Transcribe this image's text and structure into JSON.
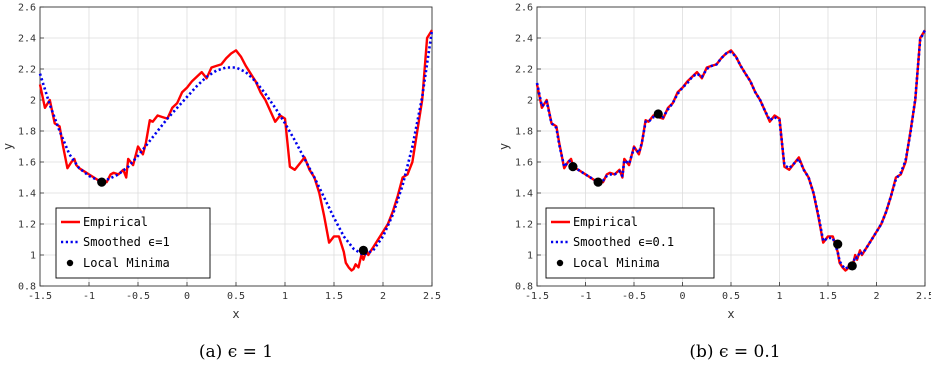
{
  "colors": {
    "empirical": "#ff0000",
    "smoothed": "#0000ee",
    "minima": "#000000",
    "grid": "#dddddd",
    "axis": "#333333"
  },
  "chart_data": [
    {
      "type": "line",
      "caption": "(a) ϵ = 1",
      "xlabel": "x",
      "ylabel": "y",
      "xlim": [
        -1.5,
        2.5
      ],
      "ylim": [
        0.8,
        2.6
      ],
      "xticks": [
        -1.5,
        -1,
        -0.5,
        0,
        0.5,
        1,
        1.5,
        2,
        2.5
      ],
      "xtick_labels": [
        "-1.5",
        "-1",
        "-0.5",
        "0",
        "0.5",
        "1",
        "1.5",
        "2",
        "2.5"
      ],
      "yticks": [
        0.8,
        1,
        1.2,
        1.4,
        1.6,
        1.8,
        2,
        2.2,
        2.4,
        2.6
      ],
      "ytick_labels": [
        "0.8",
        "1",
        "1.2",
        "1.4",
        "1.6",
        "1.8",
        "2",
        "2.2",
        "2.4",
        "2.6"
      ],
      "grid": true,
      "legend_position": "bottom-left",
      "series": [
        {
          "name": "Empirical",
          "style": "solid",
          "x": [
            -1.5,
            -1.45,
            -1.4,
            -1.35,
            -1.3,
            -1.27,
            -1.22,
            -1.18,
            -1.15,
            -1.13,
            -1.1,
            -1.05,
            -1.0,
            -0.95,
            -0.9,
            -0.85,
            -0.82,
            -0.78,
            -0.75,
            -0.7,
            -0.65,
            -0.62,
            -0.6,
            -0.55,
            -0.5,
            -0.45,
            -0.42,
            -0.38,
            -0.35,
            -0.3,
            -0.25,
            -0.2,
            -0.15,
            -0.1,
            -0.05,
            0.0,
            0.05,
            0.1,
            0.15,
            0.2,
            0.25,
            0.3,
            0.35,
            0.4,
            0.45,
            0.5,
            0.55,
            0.6,
            0.65,
            0.7,
            0.75,
            0.8,
            0.85,
            0.9,
            0.95,
            1.0,
            1.05,
            1.1,
            1.15,
            1.2,
            1.25,
            1.3,
            1.35,
            1.4,
            1.45,
            1.5,
            1.55,
            1.6,
            1.62,
            1.65,
            1.68,
            1.7,
            1.72,
            1.75,
            1.78,
            1.8,
            1.83,
            1.85,
            1.88,
            1.9,
            1.95,
            2.0,
            2.05,
            2.1,
            2.15,
            2.2,
            2.25,
            2.3,
            2.35,
            2.4,
            2.45,
            2.5
          ],
          "y": [
            2.1,
            1.95,
            2.0,
            1.85,
            1.83,
            1.72,
            1.56,
            1.6,
            1.62,
            1.58,
            1.56,
            1.54,
            1.52,
            1.5,
            1.48,
            1.47,
            1.47,
            1.52,
            1.53,
            1.52,
            1.55,
            1.5,
            1.62,
            1.58,
            1.7,
            1.65,
            1.72,
            1.87,
            1.86,
            1.9,
            1.89,
            1.88,
            1.95,
            1.98,
            2.05,
            2.08,
            2.12,
            2.15,
            2.18,
            2.14,
            2.21,
            2.22,
            2.23,
            2.27,
            2.3,
            2.32,
            2.28,
            2.22,
            2.17,
            2.12,
            2.05,
            2.0,
            1.93,
            1.86,
            1.9,
            1.88,
            1.57,
            1.55,
            1.59,
            1.63,
            1.55,
            1.5,
            1.4,
            1.25,
            1.08,
            1.12,
            1.12,
            1.02,
            0.95,
            0.92,
            0.9,
            0.91,
            0.94,
            0.92,
            1.0,
            0.97,
            1.03,
            1.0,
            1.03,
            1.05,
            1.1,
            1.15,
            1.2,
            1.28,
            1.38,
            1.5,
            1.52,
            1.6,
            1.8,
            2.0,
            2.4,
            2.45
          ]
        },
        {
          "name": "Smoothed ϵ=1",
          "style": "dotted",
          "x": [
            -1.5,
            -1.4,
            -1.3,
            -1.2,
            -1.1,
            -1.0,
            -0.9,
            -0.8,
            -0.7,
            -0.6,
            -0.5,
            -0.4,
            -0.3,
            -0.2,
            -0.1,
            0.0,
            0.1,
            0.2,
            0.3,
            0.4,
            0.5,
            0.6,
            0.7,
            0.8,
            0.9,
            1.0,
            1.1,
            1.2,
            1.3,
            1.4,
            1.5,
            1.6,
            1.7,
            1.8,
            1.9,
            2.0,
            2.1,
            2.2,
            2.3,
            2.4,
            2.5
          ],
          "y": [
            2.17,
            1.97,
            1.8,
            1.65,
            1.56,
            1.51,
            1.48,
            1.49,
            1.52,
            1.57,
            1.64,
            1.72,
            1.8,
            1.88,
            1.95,
            2.02,
            2.09,
            2.15,
            2.19,
            2.21,
            2.21,
            2.18,
            2.12,
            2.04,
            1.95,
            1.85,
            1.74,
            1.62,
            1.5,
            1.37,
            1.24,
            1.12,
            1.04,
            1.0,
            1.03,
            1.12,
            1.26,
            1.45,
            1.7,
            2.02,
            2.45
          ]
        }
      ],
      "minima": {
        "name": "Local Minima",
        "x": [
          -0.87,
          1.8
        ],
        "y": [
          1.47,
          1.03
        ]
      }
    },
    {
      "type": "line",
      "caption": "(b) ϵ = 0.1",
      "xlabel": "x",
      "ylabel": "y",
      "xlim": [
        -1.5,
        2.5
      ],
      "ylim": [
        0.8,
        2.6
      ],
      "xticks": [
        -1.5,
        -1,
        -0.5,
        0,
        0.5,
        1,
        1.5,
        2,
        2.5
      ],
      "xtick_labels": [
        "-1.5",
        "-1",
        "-0.5",
        "0",
        "0.5",
        "1",
        "1.5",
        "2",
        "2.5"
      ],
      "yticks": [
        0.8,
        1,
        1.2,
        1.4,
        1.6,
        1.8,
        2,
        2.2,
        2.4,
        2.6
      ],
      "ytick_labels": [
        "0.8",
        "1",
        "1.2",
        "1.4",
        "1.6",
        "1.8",
        "2",
        "2.2",
        "2.4",
        "2.6"
      ],
      "grid": true,
      "legend_position": "bottom-left",
      "series": [
        {
          "name": "Empirical",
          "style": "solid",
          "x": [
            -1.5,
            -1.45,
            -1.4,
            -1.35,
            -1.3,
            -1.27,
            -1.22,
            -1.18,
            -1.15,
            -1.13,
            -1.1,
            -1.05,
            -1.0,
            -0.95,
            -0.9,
            -0.85,
            -0.82,
            -0.78,
            -0.75,
            -0.7,
            -0.65,
            -0.62,
            -0.6,
            -0.55,
            -0.5,
            -0.45,
            -0.42,
            -0.38,
            -0.35,
            -0.3,
            -0.25,
            -0.2,
            -0.15,
            -0.1,
            -0.05,
            0.0,
            0.05,
            0.1,
            0.15,
            0.2,
            0.25,
            0.3,
            0.35,
            0.4,
            0.45,
            0.5,
            0.55,
            0.6,
            0.65,
            0.7,
            0.75,
            0.8,
            0.85,
            0.9,
            0.95,
            1.0,
            1.05,
            1.1,
            1.15,
            1.2,
            1.25,
            1.3,
            1.35,
            1.4,
            1.45,
            1.5,
            1.55,
            1.6,
            1.62,
            1.65,
            1.68,
            1.7,
            1.72,
            1.75,
            1.78,
            1.8,
            1.83,
            1.85,
            1.88,
            1.9,
            1.95,
            2.0,
            2.05,
            2.1,
            2.15,
            2.2,
            2.25,
            2.3,
            2.35,
            2.4,
            2.45,
            2.5
          ],
          "y": [
            2.1,
            1.95,
            2.0,
            1.85,
            1.83,
            1.72,
            1.56,
            1.6,
            1.62,
            1.58,
            1.56,
            1.54,
            1.52,
            1.5,
            1.48,
            1.47,
            1.47,
            1.52,
            1.53,
            1.52,
            1.55,
            1.5,
            1.62,
            1.58,
            1.7,
            1.65,
            1.72,
            1.87,
            1.86,
            1.9,
            1.89,
            1.88,
            1.95,
            1.98,
            2.05,
            2.08,
            2.12,
            2.15,
            2.18,
            2.14,
            2.21,
            2.22,
            2.23,
            2.27,
            2.3,
            2.32,
            2.28,
            2.22,
            2.17,
            2.12,
            2.05,
            2.0,
            1.93,
            1.86,
            1.9,
            1.88,
            1.57,
            1.55,
            1.59,
            1.63,
            1.55,
            1.5,
            1.4,
            1.25,
            1.08,
            1.12,
            1.12,
            1.02,
            0.95,
            0.92,
            0.9,
            0.91,
            0.94,
            0.92,
            1.0,
            0.97,
            1.03,
            1.0,
            1.03,
            1.05,
            1.1,
            1.15,
            1.2,
            1.28,
            1.38,
            1.5,
            1.52,
            1.6,
            1.8,
            2.0,
            2.4,
            2.45
          ]
        },
        {
          "name": "Smoothed ϵ=0.1",
          "style": "dotted",
          "x": [
            -1.5,
            -1.45,
            -1.4,
            -1.35,
            -1.3,
            -1.27,
            -1.22,
            -1.18,
            -1.15,
            -1.13,
            -1.1,
            -1.05,
            -1.0,
            -0.95,
            -0.9,
            -0.85,
            -0.82,
            -0.78,
            -0.75,
            -0.7,
            -0.65,
            -0.62,
            -0.6,
            -0.55,
            -0.5,
            -0.45,
            -0.42,
            -0.38,
            -0.35,
            -0.3,
            -0.25,
            -0.2,
            -0.15,
            -0.1,
            -0.05,
            0.0,
            0.05,
            0.1,
            0.15,
            0.2,
            0.25,
            0.3,
            0.35,
            0.4,
            0.45,
            0.5,
            0.55,
            0.6,
            0.65,
            0.7,
            0.75,
            0.8,
            0.85,
            0.9,
            0.95,
            1.0,
            1.05,
            1.1,
            1.15,
            1.2,
            1.25,
            1.3,
            1.35,
            1.4,
            1.45,
            1.5,
            1.55,
            1.6,
            1.62,
            1.65,
            1.68,
            1.7,
            1.72,
            1.75,
            1.78,
            1.8,
            1.83,
            1.85,
            1.88,
            1.9,
            1.95,
            2.0,
            2.05,
            2.1,
            2.15,
            2.2,
            2.25,
            2.3,
            2.35,
            2.4,
            2.45,
            2.5
          ],
          "y": [
            2.11,
            1.96,
            1.99,
            1.85,
            1.82,
            1.71,
            1.57,
            1.6,
            1.61,
            1.58,
            1.56,
            1.54,
            1.52,
            1.5,
            1.48,
            1.47,
            1.48,
            1.51,
            1.52,
            1.52,
            1.54,
            1.51,
            1.61,
            1.59,
            1.69,
            1.66,
            1.72,
            1.86,
            1.86,
            1.89,
            1.89,
            1.89,
            1.94,
            1.98,
            2.04,
            2.08,
            2.11,
            2.15,
            2.17,
            2.15,
            2.2,
            2.22,
            2.23,
            2.27,
            2.3,
            2.31,
            2.28,
            2.22,
            2.17,
            2.12,
            2.05,
            2.0,
            1.93,
            1.87,
            1.89,
            1.87,
            1.58,
            1.56,
            1.59,
            1.62,
            1.55,
            1.5,
            1.4,
            1.26,
            1.09,
            1.11,
            1.11,
            1.02,
            0.96,
            0.93,
            0.91,
            0.92,
            0.94,
            0.93,
            0.99,
            0.98,
            1.02,
            1.01,
            1.03,
            1.05,
            1.1,
            1.15,
            1.2,
            1.28,
            1.38,
            1.49,
            1.53,
            1.61,
            1.79,
            2.01,
            2.39,
            2.45
          ]
        }
      ],
      "minima": {
        "name": "Local Minima",
        "x": [
          -1.13,
          -0.87,
          -0.25,
          1.6,
          1.75
        ],
        "y": [
          1.57,
          1.47,
          1.91,
          1.07,
          0.93
        ]
      }
    }
  ]
}
